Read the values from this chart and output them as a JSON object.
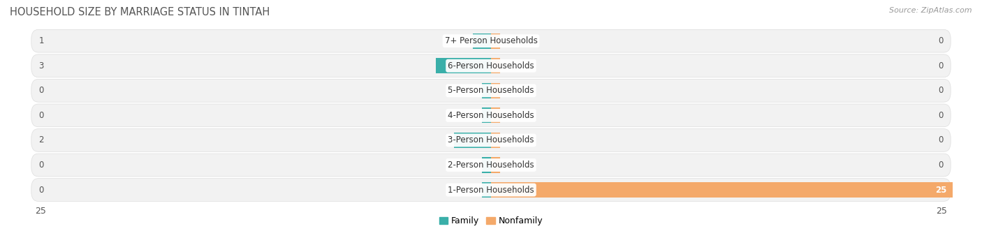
{
  "title": "HOUSEHOLD SIZE BY MARRIAGE STATUS IN TINTAH",
  "source": "Source: ZipAtlas.com",
  "categories": [
    "7+ Person Households",
    "6-Person Households",
    "5-Person Households",
    "4-Person Households",
    "3-Person Households",
    "2-Person Households",
    "1-Person Households"
  ],
  "family_values": [
    1,
    3,
    0,
    0,
    2,
    0,
    0
  ],
  "nonfamily_values": [
    0,
    0,
    0,
    0,
    0,
    0,
    25
  ],
  "family_color": "#3AAFA9",
  "nonfamily_color": "#F4A96A",
  "row_bg_color": "#F2F2F2",
  "row_line_color": "#DDDDDD",
  "xlim": 25,
  "label_fontsize": 8.5,
  "title_fontsize": 10.5,
  "source_fontsize": 8,
  "axis_label_fontsize": 9,
  "legend_labels": [
    "Family",
    "Nonfamily"
  ],
  "background_color": "#FFFFFF"
}
